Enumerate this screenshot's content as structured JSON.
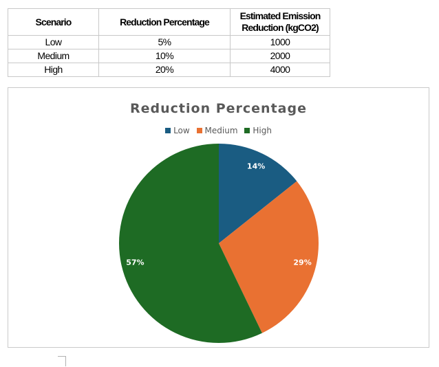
{
  "table": {
    "headers": [
      "Scenario",
      "Reduction Percentage",
      "Estimated Emission Reduction (kgCO2)"
    ],
    "rows": [
      [
        "Low",
        "5%",
        "1000"
      ],
      [
        "Medium",
        "10%",
        "2000"
      ],
      [
        "High",
        "20%",
        "4000"
      ]
    ]
  },
  "chart_data": {
    "type": "pie",
    "title": "Reduction Percentage",
    "legend_position": "top",
    "categories": [
      "Low",
      "Medium",
      "High"
    ],
    "values": [
      5,
      10,
      20
    ],
    "labels": [
      "14%",
      "29%",
      "57%"
    ],
    "colors": [
      "#1a5c82",
      "#e97132",
      "#1e6b24"
    ]
  }
}
